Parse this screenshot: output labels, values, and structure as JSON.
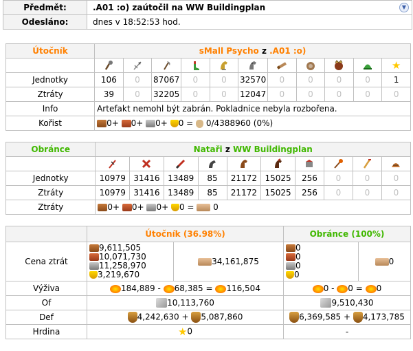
{
  "header": {
    "subject_label": "Předmět:",
    "subject": ".A01 :o) zaútočil na WW Buildingplan",
    "sent_label": "Odesláno:",
    "sent": "dnes v 18:52:53 hod."
  },
  "attacker": {
    "role": "Útočník",
    "player": "sMall Psycho",
    "from_word": "z",
    "village": ".A01 :o)",
    "units_label": "Jednotky",
    "losses_label": "Ztráty",
    "units": [
      "106",
      "0",
      "87067",
      "0",
      "0",
      "32570",
      "0",
      "0",
      "0",
      "0",
      "1"
    ],
    "losses": [
      "39",
      "0",
      "32205",
      "0",
      "0",
      "12047",
      "0",
      "0",
      "0",
      "0",
      "0"
    ],
    "info_label": "Info",
    "info": "Artefakt nemohl být zabrán. Pokladnice nebyla rozbořena.",
    "booty_label": "Kořist",
    "booty": [
      "0+",
      "0+",
      "0+",
      "0 ="
    ],
    "booty_carry": "0/4388960 (0%)"
  },
  "defender": {
    "role": "Obránce",
    "player": "Nataři",
    "from_word": "z",
    "village": "WW Buildingplan",
    "units_label": "Jednotky",
    "losses_label": "Ztráty",
    "units": [
      "10979",
      "31416",
      "13489",
      "85",
      "21172",
      "15025",
      "256",
      "0",
      "0",
      "0"
    ],
    "losses": [
      "10979",
      "31416",
      "13489",
      "85",
      "21172",
      "15025",
      "256",
      "0",
      "0",
      "0"
    ],
    "losses2_label": "Ztráty",
    "losses2": [
      "0+",
      "0+",
      "0+",
      "0 ="
    ],
    "losses2_total": "0"
  },
  "summary": {
    "attacker_head": "Útočník (36.98%)",
    "defender_head": "Obránce (100%)",
    "cost_label": "Cena ztrát",
    "att_cost": [
      "9,611,505",
      "10,071,730",
      "11,258,970",
      "3,219,670"
    ],
    "att_cost_total": "34,161,875",
    "def_cost": [
      "0",
      "0",
      "0",
      "0"
    ],
    "def_cost_total": "0",
    "upkeep_label": "Výživa",
    "att_upkeep": [
      "184,889 -",
      "68,385 =",
      "116,504"
    ],
    "def_upkeep": [
      "0 -",
      "0 =",
      "0"
    ],
    "off_label": "Of",
    "att_off": "10,113,760",
    "def_off": "9,510,430",
    "def_label": "Def",
    "att_def": [
      "4,242,630 +",
      "5,087,860"
    ],
    "def_def": [
      "6,369,585 +",
      "4,173,785"
    ],
    "hero_label": "Hrdina",
    "att_hero": "0",
    "def_hero": "-"
  }
}
